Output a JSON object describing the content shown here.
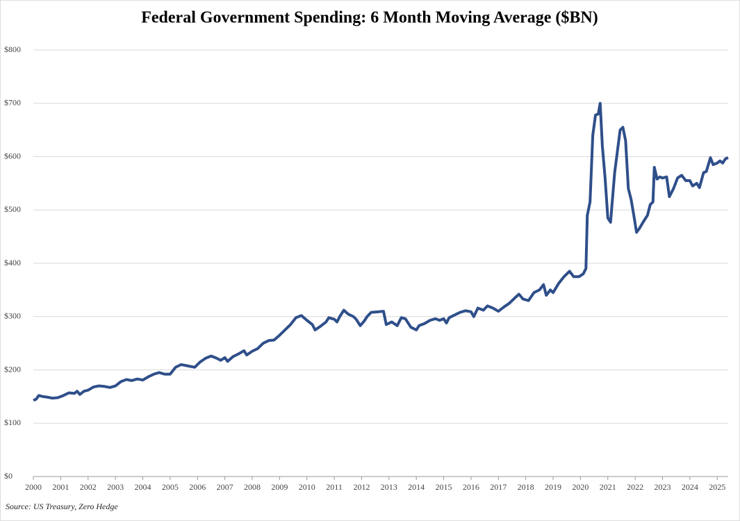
{
  "chart_data": {
    "type": "line",
    "title": "Federal Government Spending: 6 Month Moving Average ($BN)",
    "source": "Source: US Treasury, Zero Hedge",
    "x": [
      2000.0,
      2000.1,
      2000.2,
      2000.35,
      2000.5,
      2000.7,
      2000.9,
      2001.1,
      2001.3,
      2001.5,
      2001.6,
      2001.7,
      2001.85,
      2002.0,
      2002.2,
      2002.4,
      2002.6,
      2002.8,
      2003.0,
      2003.2,
      2003.4,
      2003.6,
      2003.8,
      2004.0,
      2004.2,
      2004.4,
      2004.6,
      2004.8,
      2005.0,
      2005.2,
      2005.4,
      2005.6,
      2005.9,
      2006.1,
      2006.3,
      2006.5,
      2006.7,
      2006.85,
      2007.0,
      2007.1,
      2007.3,
      2007.5,
      2007.7,
      2007.8,
      2008.0,
      2008.2,
      2008.4,
      2008.6,
      2008.8,
      2009.0,
      2009.2,
      2009.4,
      2009.6,
      2009.8,
      2010.0,
      2010.2,
      2010.3,
      2010.5,
      2010.7,
      2010.8,
      2011.0,
      2011.1,
      2011.2,
      2011.35,
      2011.5,
      2011.7,
      2011.8,
      2011.95,
      2012.1,
      2012.2,
      2012.35,
      2012.6,
      2012.8,
      2012.9,
      2013.1,
      2013.3,
      2013.45,
      2013.6,
      2013.8,
      2014.0,
      2014.1,
      2014.3,
      2014.5,
      2014.7,
      2014.85,
      2015.0,
      2015.1,
      2015.2,
      2015.4,
      2015.6,
      2015.8,
      2016.0,
      2016.1,
      2016.25,
      2016.45,
      2016.6,
      2016.8,
      2017.0,
      2017.2,
      2017.4,
      2017.6,
      2017.75,
      2017.9,
      2018.1,
      2018.3,
      2018.5,
      2018.65,
      2018.75,
      2018.9,
      2019.0,
      2019.2,
      2019.4,
      2019.6,
      2019.75,
      2019.95,
      2020.1,
      2020.2,
      2020.25,
      2020.35,
      2020.45,
      2020.55,
      2020.65,
      2020.72,
      2020.8,
      2020.9,
      2021.0,
      2021.1,
      2021.25,
      2021.35,
      2021.45,
      2021.55,
      2021.65,
      2021.75,
      2021.85,
      2021.95,
      2022.05,
      2022.15,
      2022.3,
      2022.45,
      2022.55,
      2022.65,
      2022.7,
      2022.8,
      2022.9,
      2023.0,
      2023.15,
      2023.25,
      2023.4,
      2023.55,
      2023.7,
      2023.85,
      2024.0,
      2024.1,
      2024.25,
      2024.35,
      2024.5,
      2024.6,
      2024.75,
      2024.85,
      2025.0,
      2025.1,
      2025.2,
      2025.3,
      2025.4
    ],
    "series": [
      {
        "color": "#2f4f8a",
        "values": [
          143,
          145,
          152,
          150,
          149,
          147,
          148,
          152,
          157,
          156,
          160,
          154,
          160,
          162,
          168,
          170,
          169,
          167,
          170,
          178,
          182,
          180,
          183,
          181,
          187,
          192,
          195,
          192,
          192,
          205,
          210,
          208,
          205,
          215,
          222,
          226,
          222,
          218,
          223,
          216,
          225,
          230,
          236,
          228,
          235,
          240,
          250,
          255,
          256,
          265,
          275,
          285,
          298,
          302,
          293,
          285,
          275,
          282,
          290,
          298,
          295,
          290,
          300,
          312,
          305,
          300,
          295,
          283,
          292,
          300,
          308,
          309,
          310,
          285,
          290,
          283,
          298,
          296,
          280,
          275,
          283,
          287,
          293,
          296,
          293,
          296,
          288,
          298,
          303,
          308,
          311,
          309,
          300,
          316,
          312,
          320,
          316,
          310,
          318,
          325,
          335,
          342,
          333,
          330,
          345,
          350,
          360,
          340,
          350,
          345,
          362,
          375,
          385,
          375,
          375,
          380,
          390,
          490,
          515,
          640,
          678,
          680,
          700,
          620,
          560,
          485,
          477,
          570,
          610,
          650,
          655,
          630,
          540,
          520,
          490,
          458,
          465,
          478,
          490,
          510,
          515,
          580,
          558,
          562,
          560,
          562,
          525,
          540,
          560,
          565,
          555,
          555,
          545,
          550,
          542,
          570,
          572,
          598,
          585,
          588,
          592,
          588,
          596,
          598
        ]
      }
    ],
    "xlim": [
      2000,
      2025.4
    ],
    "xticks": [
      2000,
      2001,
      2002,
      2003,
      2004,
      2005,
      2006,
      2007,
      2008,
      2009,
      2010,
      2011,
      2012,
      2013,
      2014,
      2015,
      2016,
      2017,
      2018,
      2019,
      2020,
      2021,
      2022,
      2023,
      2024,
      2025
    ],
    "ylim": [
      0,
      800
    ],
    "yticks": [
      {
        "value": 0,
        "label": "$0"
      },
      {
        "value": 100,
        "label": "$100"
      },
      {
        "value": 200,
        "label": "$200"
      },
      {
        "value": 300,
        "label": "$300"
      },
      {
        "value": 400,
        "label": "$400"
      },
      {
        "value": 500,
        "label": "$500"
      },
      {
        "value": 600,
        "label": "$600"
      },
      {
        "value": 700,
        "label": "$700"
      },
      {
        "value": 800,
        "label": "$800"
      }
    ],
    "grid": true
  }
}
